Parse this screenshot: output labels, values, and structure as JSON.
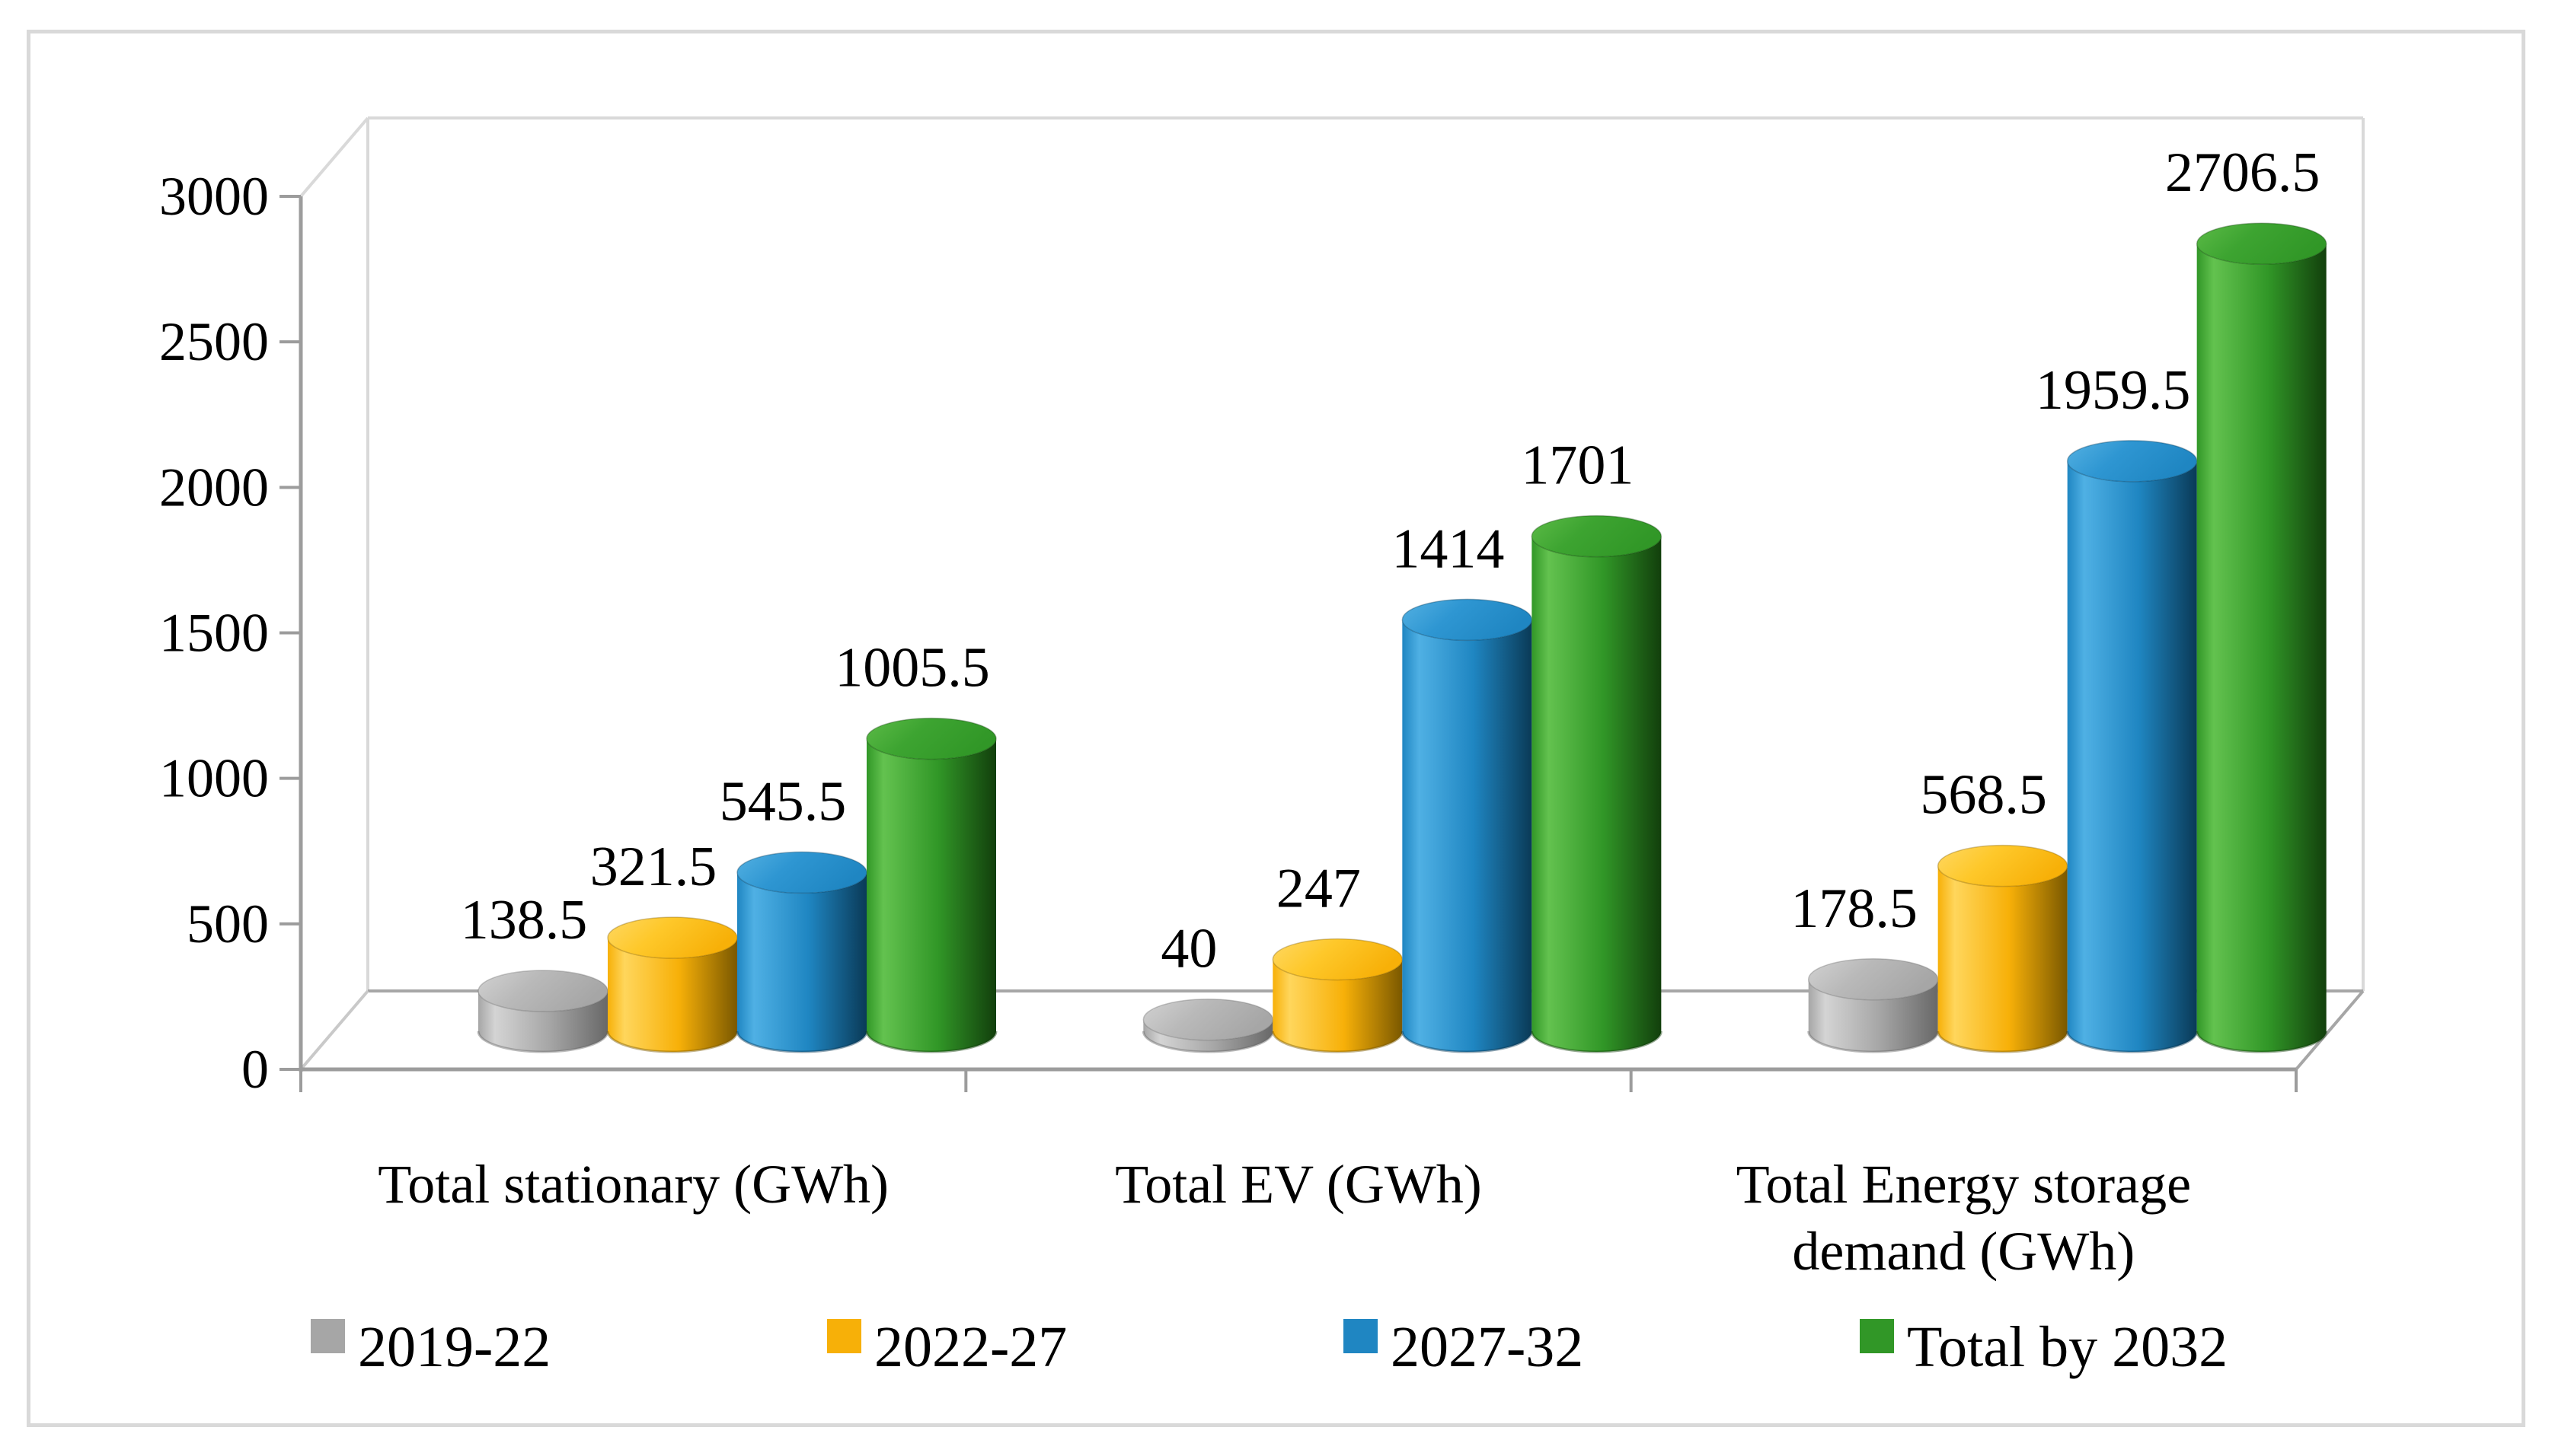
{
  "chart_data": {
    "type": "bar",
    "subtype": "3d-cylinder",
    "title": "",
    "xlabel": "",
    "ylabel": "",
    "categories": [
      "Total stationary (GWh)",
      "Total EV (GWh)",
      "Total Energy storage demand (GWh)"
    ],
    "category_label_lines": [
      [
        "Total stationary (GWh)"
      ],
      [
        "Total EV (GWh)"
      ],
      [
        "Total Energy storage",
        "demand (GWh)"
      ]
    ],
    "series": [
      {
        "name": "2019-22",
        "color": "#a6a6a6",
        "color_light": "#d4d4d4",
        "color_dark": "#686868",
        "cap_color": "#b9b9b9",
        "cap_light": "#d2d2d2",
        "values": [
          138.5,
          40,
          178.5
        ]
      },
      {
        "name": "2022-27",
        "color": "#f7b008",
        "color_light": "#ffd65c",
        "color_dark": "#7a5800",
        "cap_color": "#fec82a",
        "cap_light": "#ffd863",
        "values": [
          321.5,
          247,
          568.5
        ]
      },
      {
        "name": "2027-32",
        "color": "#1f86c2",
        "color_light": "#4fb0e4",
        "color_dark": "#0a3a57",
        "cap_color": "#2e96d2",
        "cap_light": "#54b1e2",
        "values": [
          545.5,
          1414,
          1959.5
        ]
      },
      {
        "name": "Total by 2032",
        "color": "#319727",
        "color_light": "#63c24f",
        "color_dark": "#123f0c",
        "cap_color": "#3da431",
        "cap_light": "#5cbb47",
        "values": [
          1005.5,
          1701,
          2706.5
        ]
      }
    ],
    "data_labels": [
      [
        "138.5",
        "321.5",
        "545.5",
        "1005.5"
      ],
      [
        "40",
        "247",
        "1414",
        "1701"
      ],
      [
        "178.5",
        "568.5",
        "1959.5",
        "2706.5"
      ]
    ],
    "y_axis": {
      "min": 0,
      "max": 3000,
      "step": 500,
      "tick_labels": [
        "0",
        "500",
        "1000",
        "1500",
        "2000",
        "2500",
        "3000"
      ]
    },
    "legend": {
      "position": "bottom",
      "entries": [
        "2019-22",
        "2022-27",
        "2027-32",
        "Total by 2032"
      ]
    },
    "grid": false,
    "axis_color": "#9c9c9c",
    "wall_line_color": "#d9d9d9",
    "floor_line_color": "#a6a6a6",
    "text_color": "#000000",
    "background": "#ffffff",
    "border_color": "#d9d9d9"
  }
}
